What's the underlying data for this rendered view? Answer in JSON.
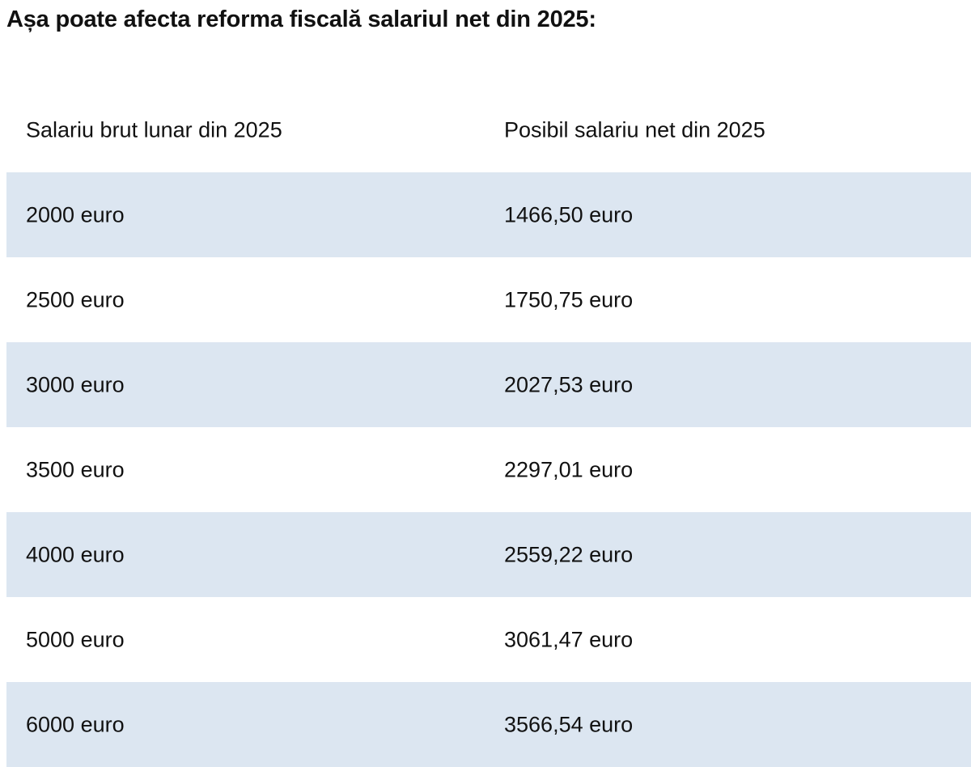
{
  "title": "Așa poate afecta reforma fiscală salariul net din 2025:",
  "colors": {
    "shaded_row": "#dce6f1",
    "text": "#111111"
  },
  "table": {
    "headers": [
      "Salariu brut lunar din 2025",
      "Posibil salariu net din 2025"
    ],
    "rows": [
      [
        "2000 euro",
        "1466,50 euro"
      ],
      [
        "2500 euro",
        "1750,75 euro"
      ],
      [
        "3000 euro",
        "2027,53 euro"
      ],
      [
        "3500 euro",
        "2297,01 euro"
      ],
      [
        "4000 euro",
        "2559,22 euro"
      ],
      [
        "5000 euro",
        "3061,47 euro"
      ],
      [
        "6000 euro",
        "3566,54 euro"
      ]
    ]
  }
}
